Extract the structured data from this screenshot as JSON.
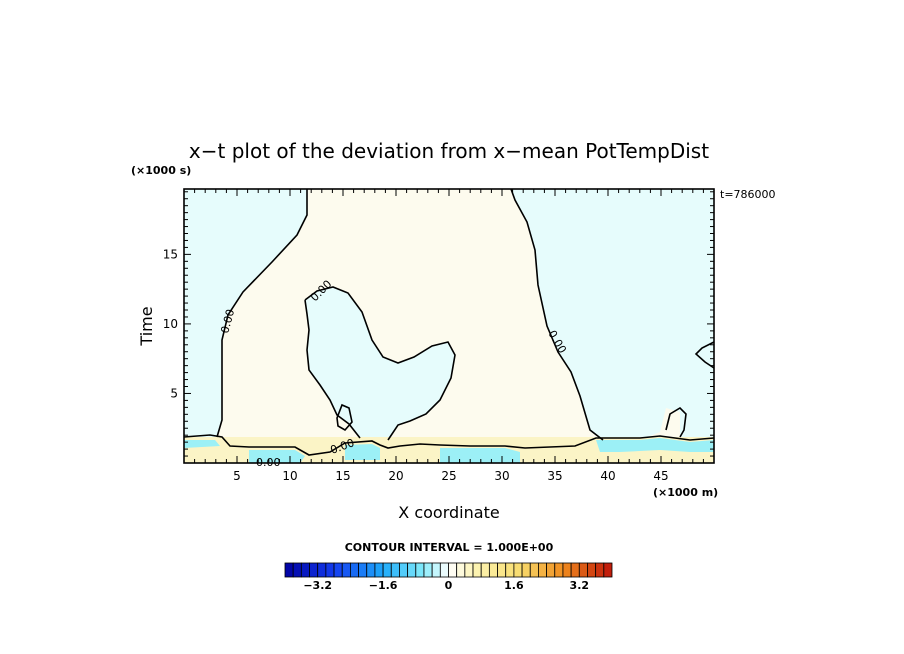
{
  "chart_data": {
    "type": "heatmap",
    "title": "x−t plot of the deviation from x−mean PotTempDist",
    "xlabel": "X coordinate",
    "ylabel": "Time",
    "x_unit": "(×1000 m)",
    "y_unit": "(×1000 s)",
    "time_stamp": "t=786000",
    "xlim": [
      0,
      50
    ],
    "ylim": [
      0,
      19.7
    ],
    "x_ticks": [
      5,
      10,
      15,
      20,
      25,
      30,
      35,
      40,
      45
    ],
    "y_ticks": [
      5,
      10,
      15
    ],
    "contour_interval_label": "CONTOUR INTERVAL = 1.000E+00",
    "contour_labels": [
      "0.00",
      "0.00",
      "0.00",
      "0.00",
      "0.00"
    ],
    "colorbar": {
      "range": [
        -4,
        4
      ],
      "tick_values": [
        -3.2,
        -1.6,
        0,
        1.6,
        3.2
      ],
      "tick_labels": [
        "−3.2",
        "−1.6",
        "0",
        "1.6",
        "3.2"
      ]
    },
    "regions": [
      {
        "name": "positive",
        "value": 0.2,
        "color": "#fdfbee"
      },
      {
        "name": "negative",
        "value": -0.2,
        "color": "#e6fcfc"
      },
      {
        "name": "bottom-positive",
        "value": 0.6,
        "color": "#fbf4c6"
      },
      {
        "name": "bottom-negative",
        "value": -1.0,
        "color": "#9cf0f6"
      }
    ]
  }
}
